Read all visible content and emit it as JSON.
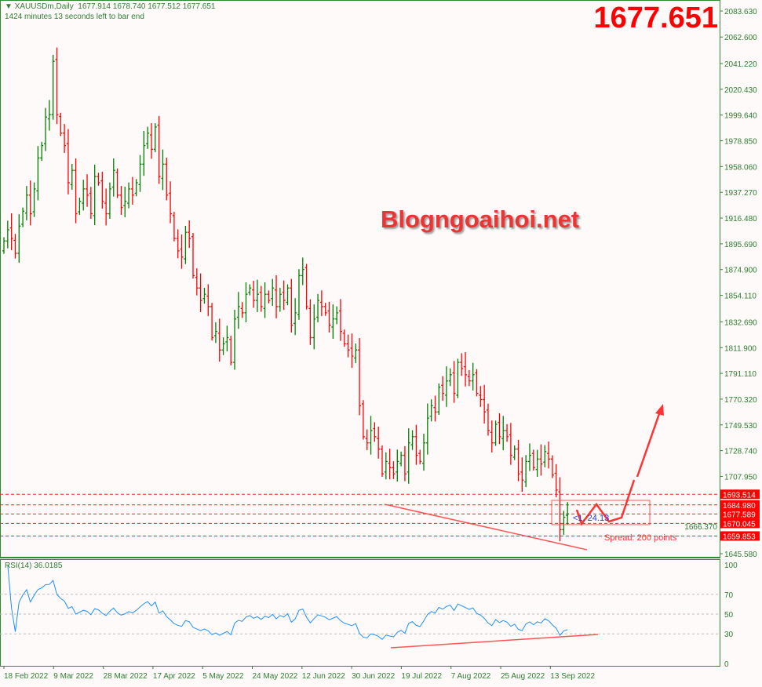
{
  "header": {
    "symbol": "XAUUSDm,Daily",
    "ohlc": "1677.914 1678.740 1677.512 1677.651",
    "timer": "1424 minutes 13 seconds left to bar end",
    "current_price_big": "1677.651",
    "watermark": "Blogngoaihoi.net"
  },
  "colors": {
    "up": "#008000",
    "down": "#ff0000",
    "background": "#fffafa",
    "axis": "#2e8b2e",
    "rsi_line": "#1e90ff",
    "annotation": "#ff3333"
  },
  "chart_data": [
    {
      "type": "ohlc",
      "symbol": "XAUUSDm",
      "timeframe": "Daily",
      "ylim": [
        1645.58,
        2083.63
      ],
      "y_ticks": [
        "2083.630",
        "2062.600",
        "2041.220",
        "2020.430",
        "1999.640",
        "1978.850",
        "1958.060",
        "1937.270",
        "1916.480",
        "1895.690",
        "1874.900",
        "1854.110",
        "1832.690",
        "1811.900",
        "1791.110",
        "1770.320",
        "1749.530",
        "1728.740",
        "1707.950",
        "1666.370",
        "1645.580"
      ],
      "x_ticks": [
        "18 Feb 2022",
        "9 Mar 2022",
        "28 Mar 2022",
        "17 Apr 2022",
        "5 May 2022",
        "24 May 2022",
        "12 Jun 2022",
        "30 Jun 2022",
        "19 Jul 2022",
        "7 Aug 2022",
        "25 Aug 2022",
        "13 Sep 2022"
      ],
      "closes": [
        1898,
        1907,
        1900,
        1888,
        1910,
        1922,
        1935,
        1920,
        1940,
        1965,
        1975,
        1998,
        2000,
        2043,
        2000,
        1985,
        1975,
        1945,
        1955,
        1920,
        1930,
        1940,
        1935,
        1920,
        1950,
        1945,
        1930,
        1920,
        1940,
        1955,
        1935,
        1925,
        1930,
        1940,
        1935,
        1945,
        1960,
        1975,
        1985,
        1972,
        1990,
        1950,
        1960,
        1935,
        1920,
        1900,
        1890,
        1885,
        1905,
        1900,
        1870,
        1860,
        1850,
        1855,
        1845,
        1820,
        1825,
        1810,
        1815,
        1820,
        1800,
        1835,
        1845,
        1840,
        1855,
        1860,
        1850,
        1855,
        1845,
        1855,
        1850,
        1860,
        1845,
        1855,
        1850,
        1860,
        1830,
        1840,
        1870,
        1875,
        1845,
        1820,
        1835,
        1850,
        1845,
        1840,
        1830,
        1835,
        1840,
        1825,
        1815,
        1810,
        1805,
        1810,
        1765,
        1740,
        1735,
        1745,
        1740,
        1730,
        1710,
        1720,
        1715,
        1710,
        1720,
        1725,
        1710,
        1735,
        1740,
        1725,
        1720,
        1735,
        1755,
        1765,
        1760,
        1780,
        1775,
        1785,
        1790,
        1775,
        1800,
        1795,
        1790,
        1785,
        1790,
        1775,
        1770,
        1760,
        1745,
        1735,
        1750,
        1740,
        1745,
        1740,
        1725,
        1730,
        1710,
        1705,
        1720,
        1725,
        1715,
        1722,
        1718,
        1728,
        1722,
        1709,
        1697,
        1665,
        1675,
        1677.651
      ],
      "price_levels": [
        {
          "value": "1693.514",
          "style": "dashed-red"
        },
        {
          "value": "1684.980",
          "style": "dashed-red"
        },
        {
          "value": "1677.589",
          "style": "dashed-red"
        },
        {
          "value": "1670.045",
          "style": "dashed-red"
        },
        {
          "value": "1659.853",
          "style": "dashed-red"
        }
      ],
      "annotations": {
        "ruler_text": "<1, 24.13",
        "spread_text": "Spread: 200 points"
      }
    },
    {
      "type": "line",
      "title": "RSI(14) 36.0185",
      "ylim": [
        0,
        100
      ],
      "y_ticks": [
        "100",
        "70",
        "50",
        "30",
        "0"
      ],
      "levels": [
        70,
        50,
        30
      ],
      "period": 14
    }
  ]
}
